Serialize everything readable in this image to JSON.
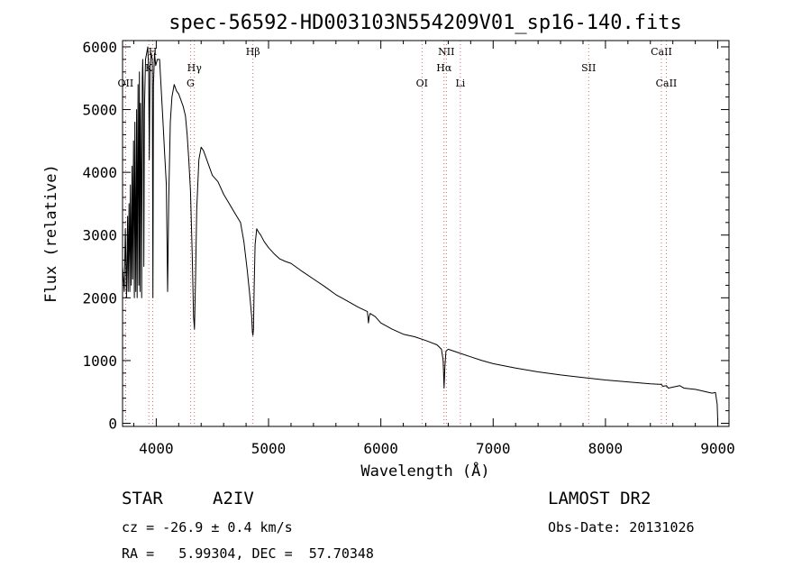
{
  "chart_data": {
    "type": "line",
    "title": "spec-56592-HD003103N554209V01_sp16-140.fits",
    "xlabel": "Wavelength (Å)",
    "ylabel": "Flux (relative)",
    "xlim": [
      3700,
      9100
    ],
    "ylim": [
      -50,
      6100
    ],
    "xticks": [
      4000,
      5000,
      6000,
      7000,
      8000,
      9000
    ],
    "yticks": [
      0,
      1000,
      2000,
      3000,
      4000,
      5000,
      6000
    ],
    "series": [
      {
        "name": "spectrum",
        "x": [
          3700,
          3715,
          3725,
          3735,
          3745,
          3750,
          3758,
          3765,
          3770,
          3778,
          3785,
          3790,
          3798,
          3805,
          3810,
          3818,
          3825,
          3830,
          3838,
          3845,
          3850,
          3856,
          3860,
          3866,
          3870,
          3876,
          3880,
          3884,
          3889,
          3895,
          3905,
          3915,
          3925,
          3933,
          3938,
          3945,
          3955,
          3965,
          3970,
          3975,
          3985,
          3995,
          4010,
          4030,
          4045,
          4060,
          4075,
          4090,
          4101,
          4112,
          4125,
          4140,
          4160,
          4180,
          4200,
          4220,
          4240,
          4260,
          4275,
          4290,
          4305,
          4320,
          4332,
          4340,
          4350,
          4360,
          4380,
          4400,
          4420,
          4440,
          4460,
          4480,
          4500,
          4550,
          4600,
          4650,
          4700,
          4750,
          4780,
          4810,
          4830,
          4850,
          4856,
          4861,
          4866,
          4872,
          4880,
          4895,
          4910,
          4930,
          4960,
          5000,
          5050,
          5100,
          5150,
          5200,
          5300,
          5400,
          5500,
          5600,
          5700,
          5800,
          5880,
          5890,
          5896,
          5905,
          5950,
          6000,
          6100,
          6200,
          6300,
          6400,
          6500,
          6540,
          6555,
          6563,
          6570,
          6580,
          6600,
          6650,
          6700,
          6800,
          6900,
          7000,
          7200,
          7400,
          7600,
          7800,
          8000,
          8200,
          8400,
          8498,
          8510,
          8542,
          8560,
          8662,
          8680,
          8700,
          8800,
          8850,
          8900,
          8950,
          8980,
          8995,
          9000
        ],
        "y": [
          2500,
          2100,
          3100,
          2000,
          3300,
          2100,
          3500,
          2100,
          3800,
          2200,
          4100,
          2300,
          4500,
          2000,
          4800,
          2100,
          5000,
          2000,
          5400,
          2200,
          5600,
          2100,
          5100,
          3800,
          2000,
          5500,
          5800,
          5300,
          2500,
          5000,
          5800,
          5900,
          6000,
          5600,
          4200,
          5700,
          5900,
          5800,
          2000,
          5400,
          5900,
          5700,
          5800,
          5800,
          5300,
          4800,
          4300,
          3800,
          2100,
          3600,
          4800,
          5200,
          5400,
          5300,
          5250,
          5150,
          5050,
          4900,
          4600,
          4200,
          3700,
          2700,
          1700,
          1500,
          2300,
          3400,
          4200,
          4400,
          4350,
          4250,
          4150,
          4050,
          3950,
          3850,
          3650,
          3500,
          3350,
          3200,
          2900,
          2450,
          2100,
          1700,
          1450,
          1400,
          1500,
          2200,
          2850,
          3100,
          3050,
          3000,
          2900,
          2800,
          2700,
          2620,
          2580,
          2550,
          2420,
          2300,
          2180,
          2050,
          1950,
          1850,
          1780,
          1600,
          1700,
          1750,
          1700,
          1600,
          1500,
          1420,
          1380,
          1320,
          1250,
          1180,
          1000,
          560,
          900,
          1150,
          1180,
          1150,
          1120,
          1060,
          1000,
          950,
          880,
          820,
          770,
          730,
          690,
          660,
          630,
          620,
          590,
          600,
          560,
          600,
          580,
          560,
          540,
          520,
          500,
          480,
          490,
          300,
          50
        ]
      }
    ],
    "lines": [
      {
        "label": "OII",
        "x": 3727,
        "row": 3
      },
      {
        "label": "K",
        "x": 3934,
        "row": 2
      },
      {
        "label": "H",
        "x": 3969,
        "row": 1
      },
      {
        "label": "Hγ",
        "x": 4340,
        "row": 2
      },
      {
        "label": "G",
        "x": 4305,
        "row": 3
      },
      {
        "label": "Hβ",
        "x": 4861,
        "row": 1
      },
      {
        "label": "OI",
        "x": 6366,
        "row": 3
      },
      {
        "label": "NII",
        "x": 6583,
        "row": 1
      },
      {
        "label": "Hα",
        "x": 6563,
        "row": 2
      },
      {
        "label": "Li",
        "x": 6708,
        "row": 3
      },
      {
        "label": "SII",
        "x": 7850,
        "row": 2
      },
      {
        "label": "CaII",
        "x": 8498,
        "row": 1
      },
      {
        "label": "CaII",
        "x": 8542,
        "row": 3
      }
    ]
  },
  "footer": {
    "object_type": "STAR",
    "spectral_class": "A2IV",
    "survey": "LAMOST DR2",
    "cz": "cz = -26.9 ± 0.4 km/s",
    "obs_date": "Obs-Date: 20131026",
    "coords": "RA =   5.99304, DEC =  57.70348"
  }
}
